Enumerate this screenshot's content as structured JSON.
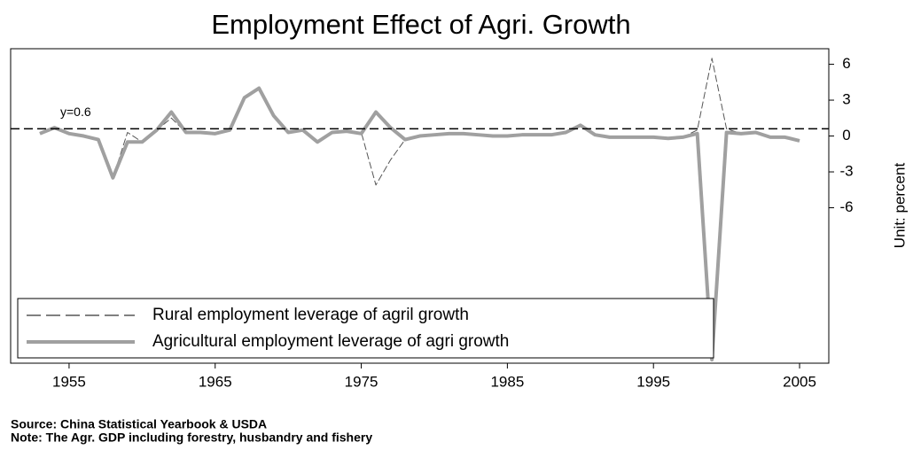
{
  "chart_data": {
    "type": "line",
    "title": "Employment Effect of Agri. Growth",
    "y_axis_label": "Unit: percent",
    "source": "Source: China Statistical Yearbook & USDA",
    "note": "Note: The Agr. GDP including forestry, husbandry and fishery",
    "x": [
      1953,
      1954,
      1955,
      1956,
      1957,
      1958,
      1959,
      1960,
      1961,
      1962,
      1963,
      1964,
      1965,
      1966,
      1967,
      1968,
      1969,
      1970,
      1971,
      1972,
      1973,
      1974,
      1975,
      1976,
      1977,
      1978,
      1979,
      1980,
      1981,
      1982,
      1983,
      1984,
      1985,
      1986,
      1987,
      1988,
      1989,
      1990,
      1991,
      1992,
      1993,
      1994,
      1995,
      1996,
      1997,
      1998,
      1999,
      2000,
      2001,
      2002,
      2003,
      2004,
      2005
    ],
    "series": [
      {
        "name": "Rural employment leverage of agril growth",
        "color": "#555555",
        "line_style": "dashed",
        "values": [
          0.2,
          0.7,
          0.2,
          0,
          -0.3,
          -3.5,
          0.3,
          -0.5,
          0.5,
          1.5,
          0.3,
          0.3,
          0.2,
          0.5,
          3.2,
          4.0,
          1.7,
          0.3,
          0.5,
          -0.5,
          0.3,
          0.4,
          0.3,
          -4.1,
          -2.0,
          -0.3,
          0,
          0.1,
          0.2,
          0.2,
          0.1,
          0,
          0,
          0.1,
          0.1,
          0.1,
          0.3,
          0.9,
          0.1,
          -0.1,
          -0.1,
          -0.1,
          -0.1,
          -0.2,
          -0.1,
          0.5,
          6.5,
          0.6,
          0.2,
          0.3,
          -0.1,
          -0.1,
          -0.4
        ]
      },
      {
        "name": "Agricultural employment leverage of agri growth",
        "color": "#a0a0a0",
        "line_style": "thick",
        "values": [
          0.2,
          0.7,
          0.2,
          0,
          -0.3,
          -3.5,
          -0.5,
          -0.5,
          0.5,
          2.0,
          0.3,
          0.3,
          0.2,
          0.5,
          3.2,
          4.0,
          1.7,
          0.3,
          0.5,
          -0.5,
          0.3,
          0.4,
          0.2,
          2.0,
          0.7,
          -0.3,
          0,
          0.1,
          0.2,
          0.2,
          0.1,
          0,
          0,
          0.1,
          0.1,
          0.1,
          0.3,
          0.9,
          0.1,
          -0.1,
          -0.1,
          -0.1,
          -0.1,
          -0.2,
          -0.1,
          0.2,
          -18.7,
          0.3,
          0.2,
          0.3,
          -0.1,
          -0.1,
          -0.4
        ]
      }
    ],
    "reference_line": {
      "value": 0.6,
      "label": "y=0.6"
    },
    "xlim": [
      1951,
      2007
    ],
    "xticks": [
      1955,
      1965,
      1975,
      1985,
      1995,
      2005
    ],
    "ylim": [
      -19,
      7.3
    ],
    "yticks": [
      6,
      3,
      0,
      -3,
      -6
    ],
    "y_axis_side": "right",
    "legend_position": "lower left",
    "grid": false
  }
}
